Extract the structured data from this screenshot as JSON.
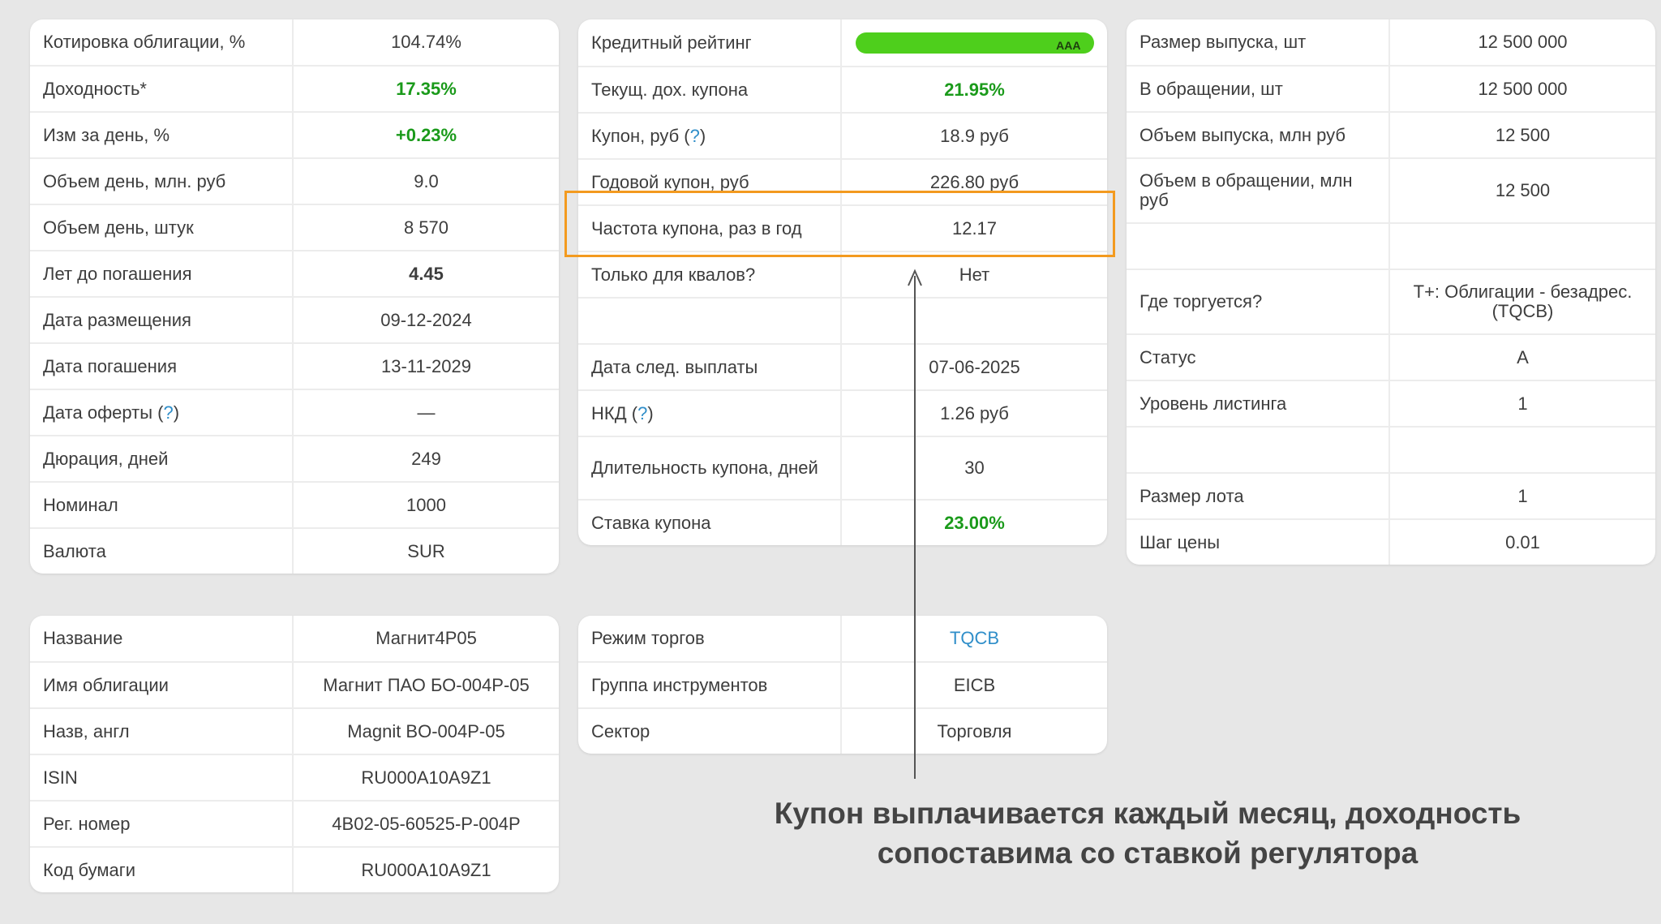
{
  "card_left_top": {
    "rows": [
      {
        "label": "Котировка облигации, %",
        "value": "104.74%"
      },
      {
        "label": "Доходность*",
        "value": "17.35%",
        "style": "green"
      },
      {
        "label": "Изм за день, %",
        "value": "+0.23%",
        "style": "green"
      },
      {
        "label": "Объем день, млн. руб",
        "value": "9.0"
      },
      {
        "label": "Объем день, штук",
        "value": "8 570"
      },
      {
        "label": "Лет до погашения",
        "value": "4.45",
        "style": "bold"
      },
      {
        "label": "Дата размещения",
        "value": "09-12-2024"
      },
      {
        "label": "Дата погашения",
        "value": "13-11-2029"
      },
      {
        "label": "Дата оферты",
        "help": "?",
        "value": "—"
      },
      {
        "label": "Дюрация, дней",
        "value": "249"
      },
      {
        "label": "Номинал",
        "value": "1000"
      },
      {
        "label": "Валюта",
        "value": "SUR"
      }
    ]
  },
  "card_mid_top": {
    "rows": [
      {
        "label": "Кредитный рейтинг",
        "value": "",
        "rating": "AAA"
      },
      {
        "label": "Текущ. дох. купона",
        "value": "21.95%",
        "style": "green"
      },
      {
        "label": "Купон, руб",
        "help": "?",
        "value": "18.9 руб"
      },
      {
        "label": "Годовой купон, руб",
        "value": "226.80 руб"
      },
      {
        "label": "Частота купона, раз в год",
        "value": "12.17"
      },
      {
        "label": "Только для квалов?",
        "value": "Нет"
      },
      {
        "label": "",
        "value": ""
      },
      {
        "label": "Дата след. выплаты",
        "value": "07-06-2025"
      },
      {
        "label": "НКД",
        "help": "?",
        "value": "1.26 руб"
      },
      {
        "label": "Длительность купона, дней",
        "value": "30",
        "tall": true
      },
      {
        "label": "Ставка купона",
        "value": "23.00%",
        "style": "green"
      }
    ]
  },
  "card_right_top": {
    "rows": [
      {
        "label": "Размер выпуска, шт",
        "value": "12 500 000"
      },
      {
        "label": "В обращении, шт",
        "value": "12 500 000"
      },
      {
        "label": "Объем выпуска, млн руб",
        "value": "12 500"
      },
      {
        "label": "Объем в обращении, млн руб",
        "value": "12 500",
        "tall": true
      },
      {
        "label": "",
        "value": ""
      },
      {
        "label": "Где торгуется?",
        "value": "T+: Облигации - безадрес. (TQCB)",
        "tall": true
      },
      {
        "label": "Статус",
        "value": "A"
      },
      {
        "label": "Уровень листинга",
        "value": "1"
      },
      {
        "label": "",
        "value": ""
      },
      {
        "label": "Размер лота",
        "value": "1"
      },
      {
        "label": "Шаг цены",
        "value": "0.01"
      }
    ]
  },
  "card_left_bottom": {
    "rows": [
      {
        "label": "Название",
        "value": "Магнит4Р05"
      },
      {
        "label": "Имя облигации",
        "value": "Магнит ПАО БО-004Р-05"
      },
      {
        "label": "Назв, англ",
        "value": "Magnit BO-004P-05"
      },
      {
        "label": "ISIN",
        "value": "RU000A10A9Z1"
      },
      {
        "label": "Рег. номер",
        "value": "4B02-05-60525-P-004P"
      },
      {
        "label": "Код бумаги",
        "value": "RU000A10A9Z1"
      }
    ]
  },
  "card_mid_bottom": {
    "rows": [
      {
        "label": "Режим торгов",
        "value": "TQCB",
        "style": "link"
      },
      {
        "label": "Группа инструментов",
        "value": "EICB"
      },
      {
        "label": "Сектор",
        "value": "Торговля"
      }
    ]
  },
  "annotation": {
    "caption_line1": "Купон выплачивается каждый месяц, доходность",
    "caption_line2": "сопоставима со ставкой регулятора",
    "highlight_color": "#f39a1f"
  },
  "colors": {
    "green_value": "#1a9a1a",
    "link": "#2f8ec9",
    "rating_bar": "#4ecf1c",
    "background": "#e7e7e7"
  }
}
